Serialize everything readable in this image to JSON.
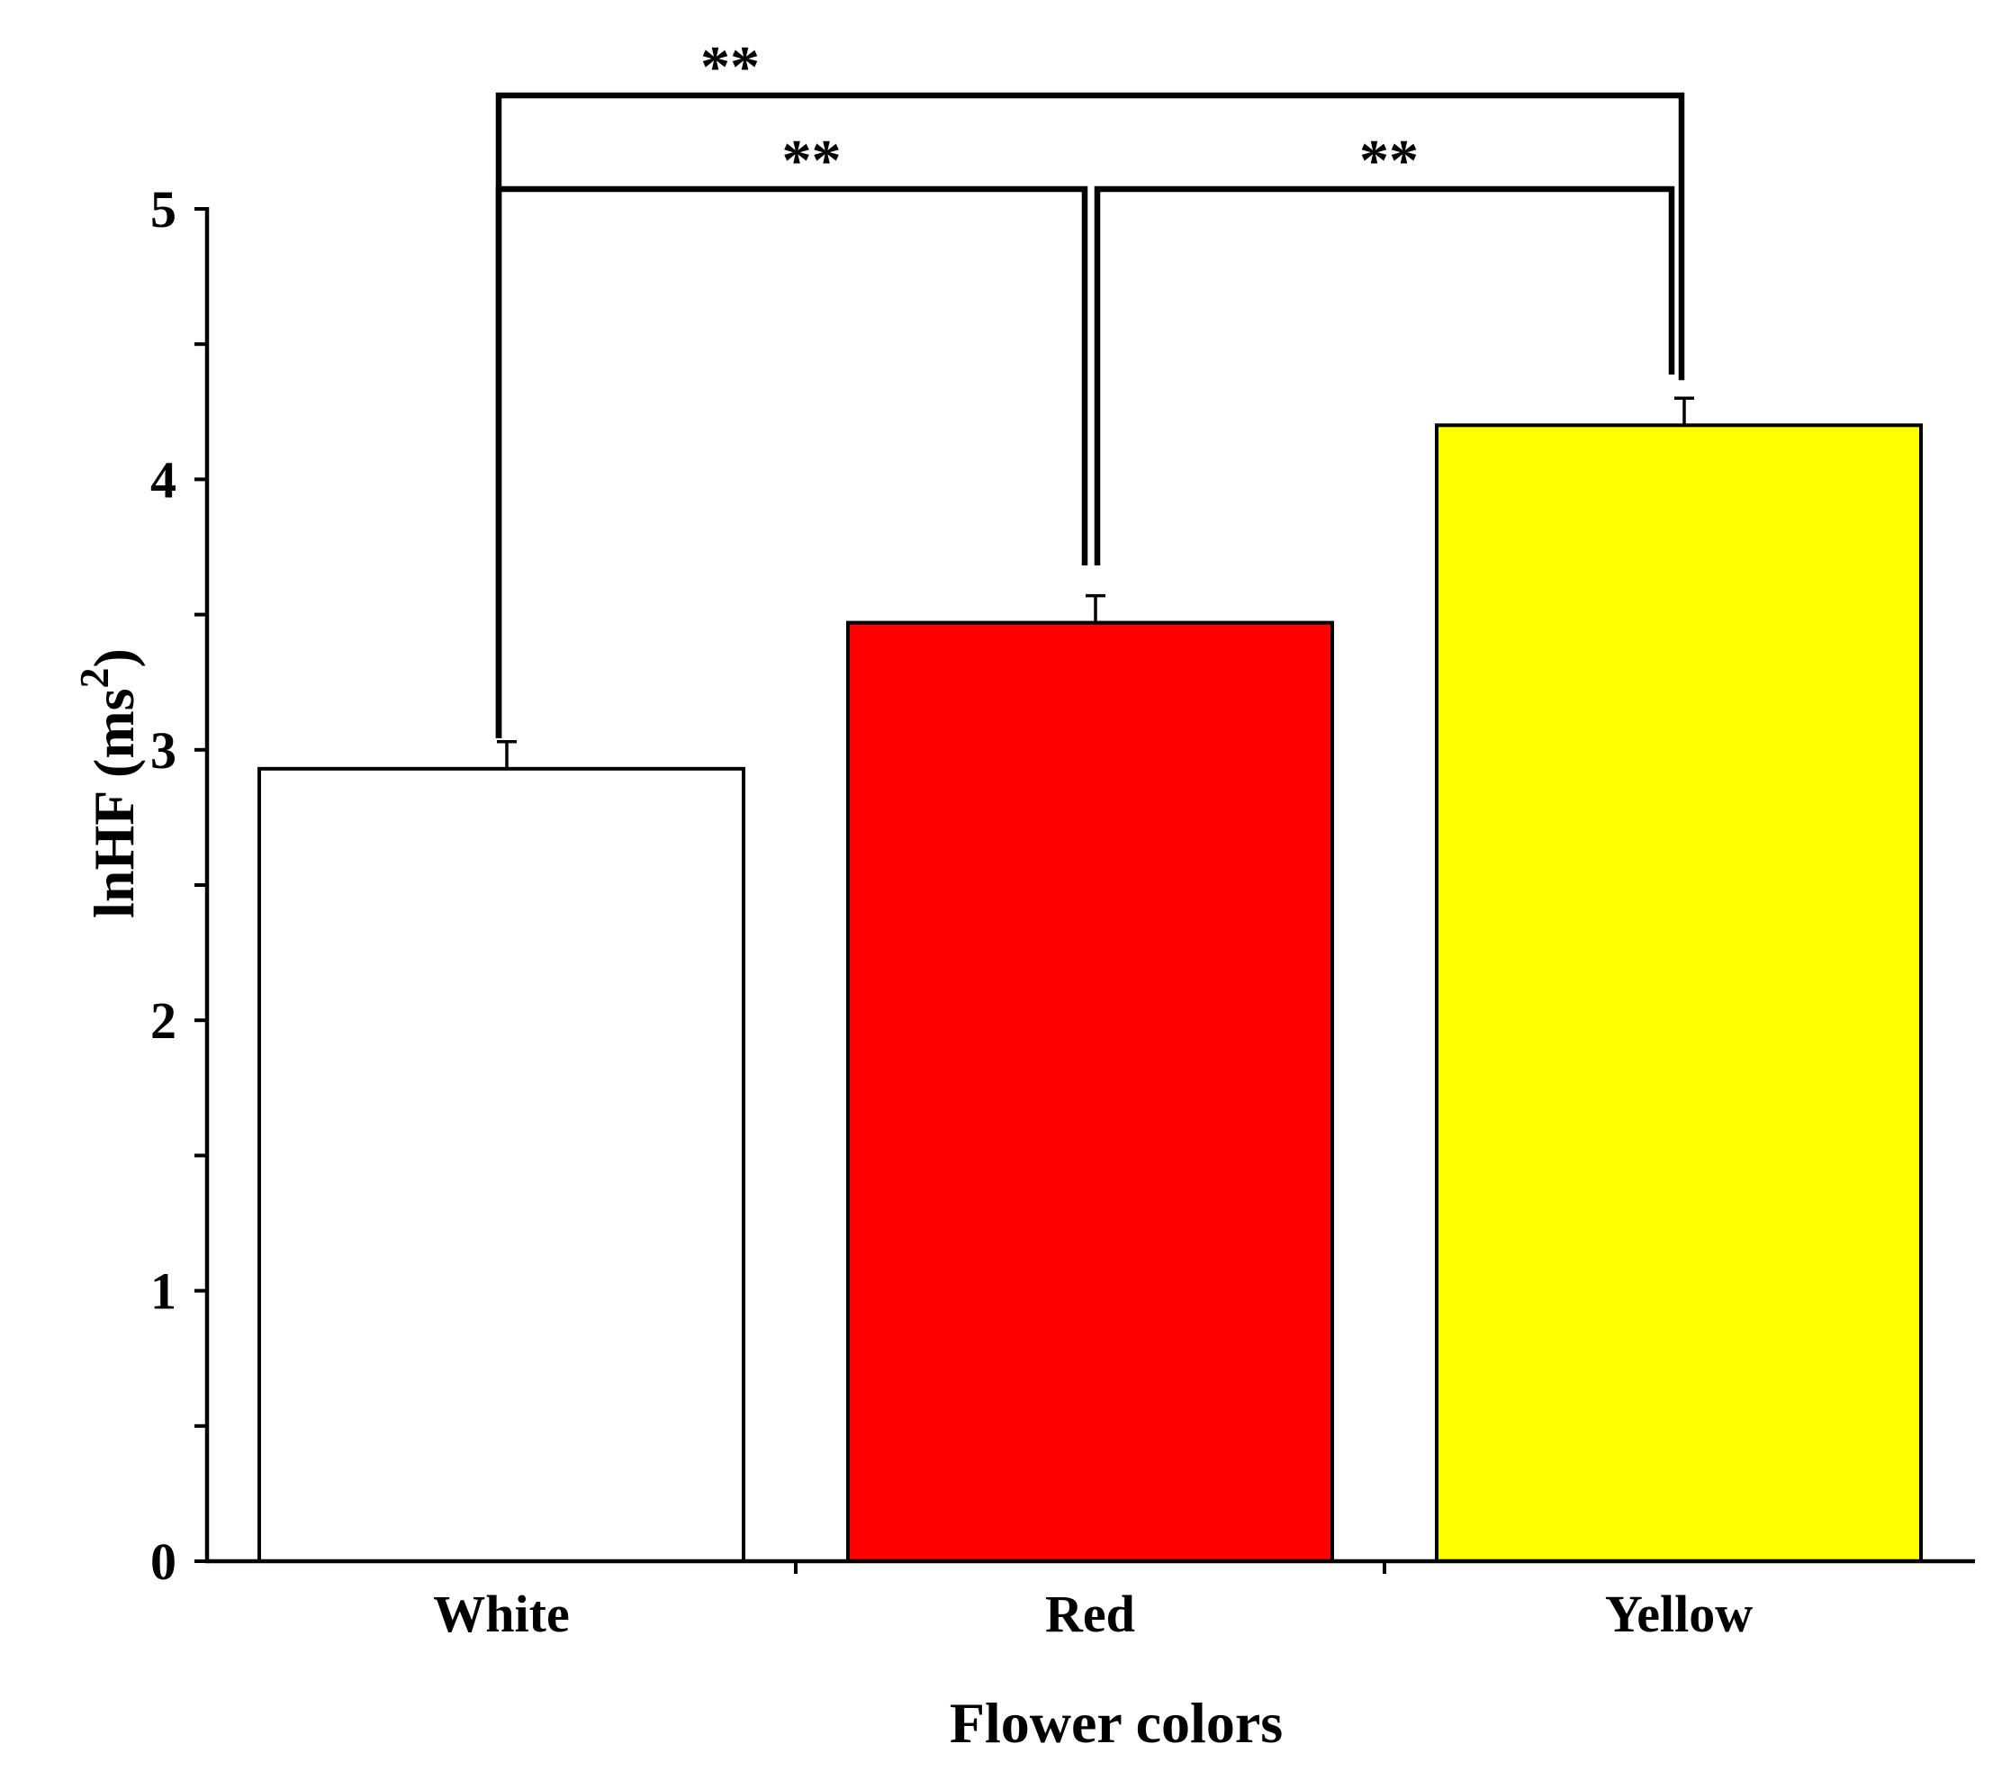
{
  "chart_data": {
    "type": "bar",
    "categories": [
      "White",
      "Red",
      "Yellow"
    ],
    "values": [
      2.93,
      3.47,
      4.2
    ],
    "error": [
      0.1,
      0.1,
      0.1
    ],
    "colors": [
      "#ffffff",
      "#ff0000",
      "#ffff00"
    ],
    "xlabel": "Flower colors",
    "ylabel": "lnHF (ms",
    "ylabel_superscript": "2",
    "ylabel_suffix": ")",
    "ylim": [
      0,
      5
    ],
    "yticks": [
      "0",
      "1",
      "2",
      "3",
      "4",
      "5"
    ],
    "grid": false,
    "significance": [
      {
        "from": "White",
        "to": "Yellow",
        "label": "**"
      },
      {
        "from": "White",
        "to": "Red",
        "label": "**"
      },
      {
        "from": "Red",
        "to": "Yellow",
        "label": "**"
      }
    ]
  }
}
